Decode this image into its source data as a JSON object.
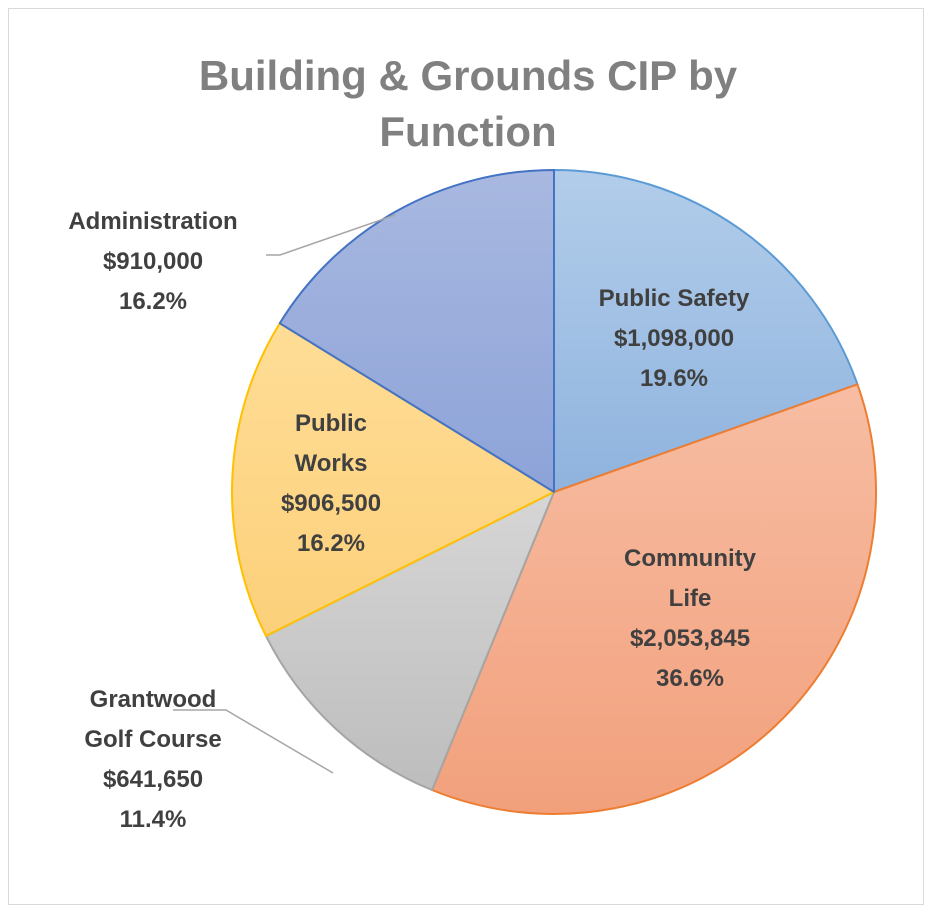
{
  "chart_data": {
    "type": "pie",
    "title_lines": [
      "Building & Grounds CIP by",
      "Function"
    ],
    "unit": "$",
    "slices": [
      {
        "name": "Public Safety",
        "label_lines": [
          "Public Safety",
          "$1,098,000",
          "19.6%"
        ],
        "value": 1098000,
        "percent": 19.6,
        "fill_top": "#b2cdea",
        "fill_bottom": "#8fb3de",
        "stroke": "#5b9bd5",
        "label_color": "#404040",
        "leader": false
      },
      {
        "name": "Community Life",
        "label_lines": [
          "Community",
          "Life",
          "$2,053,845",
          "36.6%"
        ],
        "value": 2053845,
        "percent": 36.6,
        "fill_top": "#f7bda3",
        "fill_bottom": "#f2a07c",
        "stroke": "#ed7d31",
        "label_color": "#404040",
        "leader": false
      },
      {
        "name": "Grantwood Golf Course",
        "label_lines": [
          "Grantwood",
          "Golf Course",
          "$641,650",
          "11.4%"
        ],
        "value": 641650,
        "percent": 11.4,
        "fill_top": "#d6d6d6",
        "fill_bottom": "#bdbdbd",
        "stroke": "#a5a5a5",
        "label_color": "#404040",
        "leader": true
      },
      {
        "name": "Public Works",
        "label_lines": [
          "Public",
          "Works",
          "$906,500",
          "16.2%"
        ],
        "value": 906500,
        "percent": 16.2,
        "fill_top": "#ffdd96",
        "fill_bottom": "#fcd07a",
        "stroke": "#ffc000",
        "label_color": "#404040",
        "leader": false
      },
      {
        "name": "Administration",
        "label_lines": [
          "Administration",
          "$910,000",
          "16.2%"
        ],
        "value": 910000,
        "percent": 16.2,
        "fill_top": "#a8b8e0",
        "fill_bottom": "#8da3d8",
        "stroke": "#4472c4",
        "label_color": "#404040",
        "leader": true
      }
    ],
    "legend": "none",
    "data_labels": "inside-and-outside"
  }
}
